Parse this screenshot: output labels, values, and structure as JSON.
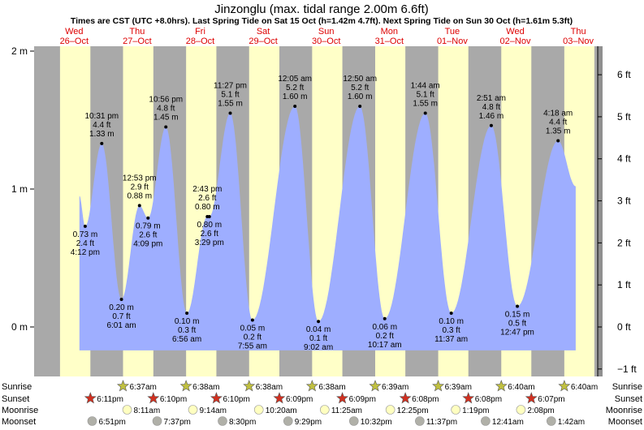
{
  "header": {
    "title": "Jinzonglu (max. tidal range 2.00m 6.6ft)",
    "subtitle": "Times are CST (UTC +8.0hrs). Last Spring Tide on Sat 15 Oct (h=1.42m 4.7ft). Next Spring Tide on Sun 30 Oct (h=1.61m 5.3ft)"
  },
  "chart_data": {
    "type": "area",
    "title": "Jinzonglu (max. tidal range 2.00m 6.6ft)",
    "left_axis": {
      "unit": "m",
      "ticks": [
        "0 m",
        "1 m",
        "2 m"
      ],
      "tick_values": [
        0,
        1,
        2
      ]
    },
    "right_axis": {
      "unit": "ft",
      "ticks": [
        "−1 ft",
        "0 ft",
        "1 ft",
        "2 ft",
        "3 ft",
        "4 ft",
        "5 ft",
        "6 ft"
      ],
      "tick_values": [
        -1,
        0,
        1,
        2,
        3,
        4,
        5,
        6
      ]
    },
    "ylim_m": [
      -0.18,
      2.05
    ],
    "days": [
      {
        "dow": "Wed",
        "date": "26–Oct"
      },
      {
        "dow": "Thu",
        "date": "27–Oct"
      },
      {
        "dow": "Fri",
        "date": "28–Oct"
      },
      {
        "dow": "Sat",
        "date": "29–Oct"
      },
      {
        "dow": "Sun",
        "date": "30–Oct"
      },
      {
        "dow": "Mon",
        "date": "31–Oct"
      },
      {
        "dow": "Tue",
        "date": "01–Nov"
      },
      {
        "dow": "Wed",
        "date": "02–Nov"
      },
      {
        "dow": "Thu",
        "date": "03–Nov"
      }
    ],
    "tides": [
      {
        "type": "low",
        "day": 0,
        "time": "4:12 pm",
        "m": "0.73 m",
        "ft": "2.4 ft",
        "height": 0.73
      },
      {
        "type": "high",
        "day": 0,
        "time": "10:31 pm",
        "m": "1.33 m",
        "ft": "4.4 ft",
        "height": 1.33
      },
      {
        "type": "low",
        "day": 1,
        "time": "6:01 am",
        "m": "0.20 m",
        "ft": "0.7 ft",
        "height": 0.2
      },
      {
        "type": "high",
        "day": 1,
        "time": "12:53 pm",
        "m": "0.88 m",
        "ft": "2.9 ft",
        "height": 0.88
      },
      {
        "type": "low",
        "day": 1,
        "time": "4:09 pm",
        "m": "0.79 m",
        "ft": "2.6 ft",
        "height": 0.79
      },
      {
        "type": "high",
        "day": 1,
        "time": "10:56 pm",
        "m": "1.45 m",
        "ft": "4.8 ft",
        "height": 1.45
      },
      {
        "type": "low",
        "day": 2,
        "time": "6:56 am",
        "m": "0.10 m",
        "ft": "0.3 ft",
        "height": 0.1
      },
      {
        "type": "high",
        "day": 2,
        "time": "2:43 pm",
        "m": "0.80 m",
        "ft": "2.6 ft",
        "height": 0.8
      },
      {
        "type": "low",
        "day": 2,
        "time": "3:29 pm",
        "m": "0.80 m",
        "ft": "2.6 ft",
        "height": 0.8
      },
      {
        "type": "high",
        "day": 2,
        "time": "11:27 pm",
        "m": "1.55 m",
        "ft": "5.1 ft",
        "height": 1.55
      },
      {
        "type": "low",
        "day": 3,
        "time": "7:55 am",
        "m": "0.05 m",
        "ft": "0.2 ft",
        "height": 0.05
      },
      {
        "type": "high",
        "day": 4,
        "time": "12:05 am",
        "m": "1.60 m",
        "ft": "5.2 ft",
        "height": 1.6
      },
      {
        "type": "low",
        "day": 4,
        "time": "9:02 am",
        "m": "0.04 m",
        "ft": "0.1 ft",
        "height": 0.04
      },
      {
        "type": "high",
        "day": 5,
        "time": "12:50 am",
        "m": "1.60 m",
        "ft": "5.2 ft",
        "height": 1.6
      },
      {
        "type": "low",
        "day": 5,
        "time": "10:17 am",
        "m": "0.06 m",
        "ft": "0.2 ft",
        "height": 0.06
      },
      {
        "type": "high",
        "day": 6,
        "time": "1:44 am",
        "m": "1.55 m",
        "ft": "5.1 ft",
        "height": 1.55
      },
      {
        "type": "low",
        "day": 6,
        "time": "11:37 am",
        "m": "0.10 m",
        "ft": "0.3 ft",
        "height": 0.1
      },
      {
        "type": "high",
        "day": 7,
        "time": "2:51 am",
        "m": "1.46 m",
        "ft": "4.8 ft",
        "height": 1.46
      },
      {
        "type": "low",
        "day": 7,
        "time": "12:47 pm",
        "m": "0.15 m",
        "ft": "0.5 ft",
        "height": 0.15
      },
      {
        "type": "high",
        "day": 8,
        "time": "4:18 am",
        "m": "1.35 m",
        "ft": "4.4 ft",
        "height": 1.35
      }
    ],
    "curve_start": {
      "day": 0,
      "time": "2:00 pm",
      "height": 0.95
    },
    "curve_end": {
      "day": 8,
      "time": "11:00 am",
      "height": 1.02
    },
    "sunrise": [
      "6:37am",
      "6:38am",
      "6:38am",
      "6:38am",
      "6:39am",
      "6:39am",
      "6:40am",
      "6:40am"
    ],
    "sunset": [
      "6:11pm",
      "6:10pm",
      "6:10pm",
      "6:09pm",
      "6:09pm",
      "6:08pm",
      "6:08pm",
      "6:07pm"
    ],
    "moonrise": [
      "8:11am",
      "9:14am",
      "10:20am",
      "11:25am",
      "12:25pm",
      "1:19pm",
      "2:08pm"
    ],
    "moonset": [
      "6:51pm",
      "7:37pm",
      "8:30pm",
      "9:29pm",
      "10:32pm",
      "11:37pm",
      "12:41am",
      "1:42am"
    ],
    "row_labels": {
      "sunrise": "Sunrise",
      "sunset": "Sunset",
      "moonrise": "Moonrise",
      "moonset": "Moonset"
    },
    "colors": {
      "day": "#ffffc8",
      "night": "#a9a9a9",
      "water": "#9eaeff",
      "date_text": "#dd0000",
      "sun_star": "#c0c040",
      "sunset_star": "#d03020",
      "moonrise_circle": "#ffffc0",
      "moonset_circle": "#b0b0a8"
    }
  }
}
